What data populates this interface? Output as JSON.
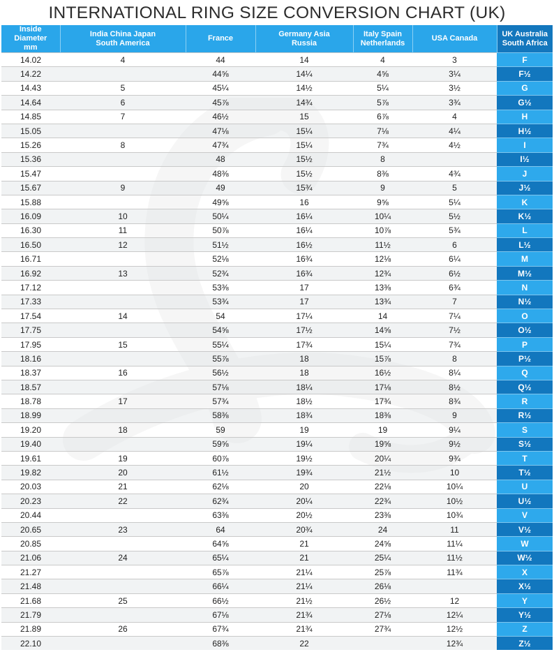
{
  "title": "INTERNATIONAL RING SIZE CONVERSION CHART (UK)",
  "headers": [
    [
      "Inside Diameter",
      "mm"
    ],
    [
      "India China Japan",
      "South America"
    ],
    [
      "France",
      ""
    ],
    [
      "Germany Asia",
      "Russia"
    ],
    [
      "Italy Spain",
      "Netherlands"
    ],
    [
      "USA Canada",
      ""
    ],
    [
      "UK Australia",
      "South Africa"
    ]
  ],
  "rows": [
    [
      "14.02",
      "4",
      "44",
      "14",
      "4",
      "3",
      "F"
    ],
    [
      "14.22",
      "",
      "44⅝",
      "14¼",
      "4⅝",
      "3¼",
      "F½"
    ],
    [
      "14.43",
      "5",
      "45¼",
      "14½",
      "5¼",
      "3½",
      "G"
    ],
    [
      "14.64",
      "6",
      "45⅞",
      "14¾",
      "5⅞",
      "3¾",
      "G½"
    ],
    [
      "14.85",
      "7",
      "46½",
      "15",
      "6⅞",
      "4",
      "H"
    ],
    [
      "15.05",
      "",
      "47⅛",
      "15¼",
      "7⅛",
      "4¼",
      "H½"
    ],
    [
      "15.26",
      "8",
      "47¾",
      "15¼",
      "7¾",
      "4½",
      "I"
    ],
    [
      "15.36",
      "",
      "48",
      "15½",
      "8",
      "",
      "I½"
    ],
    [
      "15.47",
      "",
      "48⅜",
      "15½",
      "8⅜",
      "4¾",
      "J"
    ],
    [
      "15.67",
      "9",
      "49",
      "15¾",
      "9",
      "5",
      "J½"
    ],
    [
      "15.88",
      "",
      "49⅝",
      "16",
      "9⅝",
      "5¼",
      "K"
    ],
    [
      "16.09",
      "10",
      "50¼",
      "16¼",
      "10¼",
      "5½",
      "K½"
    ],
    [
      "16.30",
      "11",
      "50⅞",
      "16¼",
      "10⅞",
      "5¾",
      "L"
    ],
    [
      "16.50",
      "12",
      "51½",
      "16½",
      "11½",
      "6",
      "L½"
    ],
    [
      "16.71",
      "",
      "52⅛",
      "16¾",
      "12⅛",
      "6¼",
      "M"
    ],
    [
      "16.92",
      "13",
      "52¾",
      "16¾",
      "12¾",
      "6½",
      "M½"
    ],
    [
      "17.12",
      "",
      "53⅜",
      "17",
      "13⅜",
      "6¾",
      "N"
    ],
    [
      "17.33",
      "",
      "53¾",
      "17",
      "13¾",
      "7",
      "N½"
    ],
    [
      "17.54",
      "14",
      "54",
      "17¼",
      "14",
      "7¼",
      "O"
    ],
    [
      "17.75",
      "",
      "54⅝",
      "17½",
      "14⅝",
      "7½",
      "O½"
    ],
    [
      "17.95",
      "15",
      "55¼",
      "17¾",
      "15¼",
      "7¾",
      "P"
    ],
    [
      "18.16",
      "",
      "55⅞",
      "18",
      "15⅞",
      "8",
      "P½"
    ],
    [
      "18.37",
      "16",
      "56½",
      "18",
      "16½",
      "8¼",
      "Q"
    ],
    [
      "18.57",
      "",
      "57⅛",
      "18¼",
      "17⅛",
      "8½",
      "Q½"
    ],
    [
      "18.78",
      "17",
      "57¾",
      "18½",
      "17¾",
      "8¾",
      "R"
    ],
    [
      "18.99",
      "",
      "58⅜",
      "18¾",
      "18⅜",
      "9",
      "R½"
    ],
    [
      "19.20",
      "18",
      "59",
      "19",
      "19",
      "9¼",
      "S"
    ],
    [
      "19.40",
      "",
      "59⅝",
      "19¼",
      "19⅝",
      "9½",
      "S½"
    ],
    [
      "19.61",
      "19",
      "60⅞",
      "19½",
      "20¼",
      "9¾",
      "T"
    ],
    [
      "19.82",
      "20",
      "61½",
      "19¾",
      "21½",
      "10",
      "T½"
    ],
    [
      "20.03",
      "21",
      "62⅛",
      "20",
      "22⅛",
      "10¼",
      "U"
    ],
    [
      "20.23",
      "22",
      "62¾",
      "20¼",
      "22¾",
      "10½",
      "U½"
    ],
    [
      "20.44",
      "",
      "63⅜",
      "20½",
      "23⅜",
      "10¾",
      "V"
    ],
    [
      "20.65",
      "23",
      "64",
      "20¾",
      "24",
      "11",
      "V½"
    ],
    [
      "20.85",
      "",
      "64⅝",
      "21",
      "24⅝",
      "11¼",
      "W"
    ],
    [
      "21.06",
      "24",
      "65¼",
      "21",
      "25¼",
      "11½",
      "W½"
    ],
    [
      "21.27",
      "",
      "65⅞",
      "21¼",
      "25⅞",
      "11¾",
      "X"
    ],
    [
      "21.48",
      "",
      "66¼",
      "21¼",
      "26⅛",
      "",
      "X½"
    ],
    [
      "21.68",
      "25",
      "66½",
      "21½",
      "26½",
      "12",
      "Y"
    ],
    [
      "21.79",
      "",
      "67⅛",
      "21¾",
      "27⅛",
      "12¼",
      "Y½"
    ],
    [
      "21.89",
      "26",
      "67¾",
      "21¾",
      "27¾",
      "12½",
      "Z"
    ],
    [
      "22.10",
      "",
      "68⅜",
      "22",
      "",
      "12¾",
      "Z½"
    ]
  ]
}
